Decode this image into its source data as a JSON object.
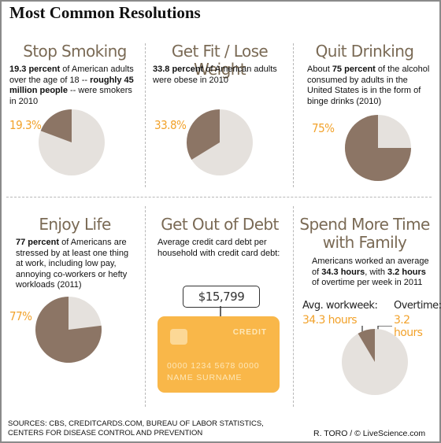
{
  "title": "Most Common Resolutions",
  "colors": {
    "pie_dark": "#8c7565",
    "pie_light": "#e5e1dd",
    "accent": "#f2a22b",
    "heading": "#7a6a55",
    "card": "#f9b749"
  },
  "panels": {
    "smoking": {
      "heading": "Stop Smoking",
      "desc_bold1": "19.3 percent",
      "desc_text1": " of American adults over the age of 18 -- ",
      "desc_bold2": "roughly 45 million people",
      "desc_text2": " -- were smokers in 2010",
      "pct_label": "19.3%"
    },
    "fit": {
      "heading": "Get Fit / Lose Weight",
      "desc_bold1": "33.8 percent",
      "desc_text1": " of American adults were obese in 2010",
      "pct_label": "33.8%"
    },
    "drinking": {
      "heading": "Quit Drinking",
      "desc_text0": "About ",
      "desc_bold1": "75 percent",
      "desc_text1": " of the alcohol consumed by adults in the United States is in the form of binge drinks (2010)",
      "pct_label": "75%"
    },
    "life": {
      "heading": "Enjoy Life",
      "desc_bold1": "77 percent",
      "desc_text1": " of Americans are stressed by at least one thing at work, including low pay, annoying co-workers or hefty workloads (2011)",
      "pct_label": "77%"
    },
    "debt": {
      "heading": "Get Out of Debt",
      "desc_text1": "Average credit card debt per household with credit card debt:",
      "amount": "$15,799",
      "card_label": "CREDIT",
      "card_number": "0000 1234 5678 0000",
      "card_name": "NAME SURNAME"
    },
    "family": {
      "heading_line1": "Spend More Time",
      "heading_line2": "with Family",
      "desc_text0": "Americans worked an average of ",
      "desc_bold1": "34.3 hours",
      "desc_text1": ", with ",
      "desc_bold2": "3.2 hours",
      "desc_text2": " of overtime per week  in 2011",
      "label_workweek": "Avg. workweek:",
      "value_workweek": "34.3 hours",
      "label_overtime": "Overtime:",
      "value_overtime": "3.2 hours"
    }
  },
  "chart_data": [
    {
      "type": "pie",
      "name": "Stop Smoking",
      "slices": [
        {
          "label": "19.3%",
          "value": 19.3
        },
        {
          "label": "",
          "value": 80.7
        }
      ]
    },
    {
      "type": "pie",
      "name": "Get Fit / Lose Weight",
      "slices": [
        {
          "label": "33.8%",
          "value": 33.8
        },
        {
          "label": "",
          "value": 66.2
        }
      ]
    },
    {
      "type": "pie",
      "name": "Quit Drinking",
      "slices": [
        {
          "label": "75%",
          "value": 75
        },
        {
          "label": "",
          "value": 25
        }
      ]
    },
    {
      "type": "pie",
      "name": "Enjoy Life",
      "slices": [
        {
          "label": "77%",
          "value": 77
        },
        {
          "label": "",
          "value": 23
        }
      ]
    },
    {
      "type": "pie",
      "name": "Spend More Time with Family",
      "slices": [
        {
          "label": "3.2 hours",
          "value": 3.2
        },
        {
          "label": "34.3 hours",
          "value": 34.3
        }
      ]
    }
  ],
  "footer": {
    "sources_line1": "SOURCES: CBS, CREDITCARDS.COM, BUREAU OF LABOR STATISTICS,",
    "sources_line2": "CENTERS FOR DISEASE CONTROL AND PREVENTION",
    "credit": "R. TORO / © LiveScience.com"
  }
}
